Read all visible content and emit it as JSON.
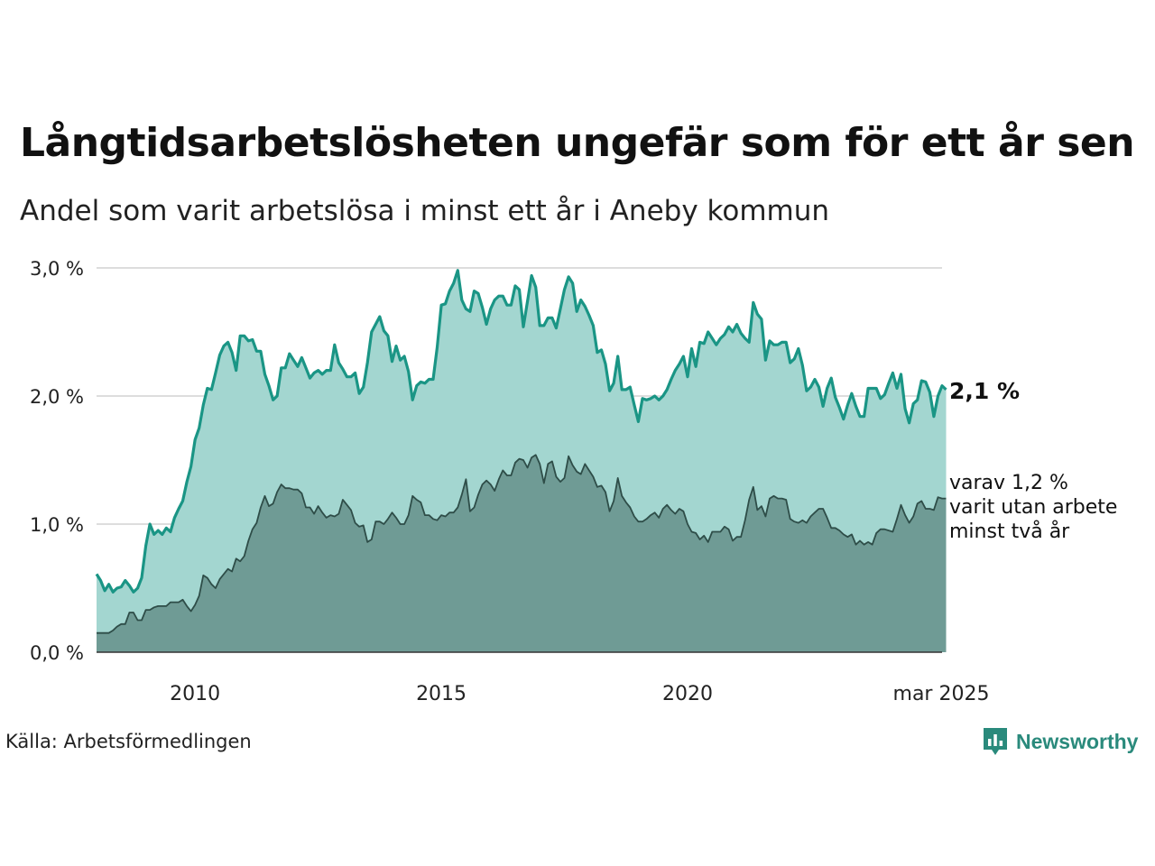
{
  "title": "Långtidsarbetslösheten ungefär som för ett år sen",
  "subtitle": "Andel som varit arbetslösa i minst ett år i Aneby kommun",
  "source": "Källa: Arbetsförmedlingen",
  "brand": {
    "name": "Newsworthy",
    "logo_icon": "newsworthy-logo-icon"
  },
  "colors": {
    "main_line": "#1a9585",
    "main_area": "#a3d6d0",
    "sub_line": "#2e4d48",
    "sub_area": "#6f9b95",
    "grid": "#dddddd"
  },
  "chart_data": {
    "type": "area",
    "x_start": "2008-01",
    "x_end": "2025-03",
    "frequency": "monthly",
    "ylim": [
      0,
      3
    ],
    "y_ticks": [
      "0,0 %",
      "1,0 %",
      "2,0 %",
      "3,0 %"
    ],
    "x_ticks": [
      {
        "date": "2010-01",
        "label": "2010"
      },
      {
        "date": "2015-01",
        "label": "2015"
      },
      {
        "date": "2020-01",
        "label": "2020"
      },
      {
        "date": "2025-03",
        "label": "mar 2025"
      }
    ],
    "grid": true,
    "series": [
      {
        "name": "Andel som varit arbetslösa i minst ett år",
        "end_label": "2,1 %",
        "values": [
          0.61,
          0.56,
          0.48,
          0.53,
          0.47,
          0.5,
          0.51,
          0.56,
          0.52,
          0.47,
          0.5,
          0.58,
          0.83,
          1.0,
          0.92,
          0.95,
          0.92,
          0.97,
          0.94,
          1.05,
          1.12,
          1.18,
          1.33,
          1.45,
          1.66,
          1.75,
          1.93,
          2.06,
          2.05,
          2.18,
          2.32,
          2.39,
          2.42,
          2.34,
          2.2,
          2.47,
          2.47,
          2.43,
          2.44,
          2.35,
          2.35,
          2.17,
          2.08,
          1.97,
          2.0,
          2.22,
          2.22,
          2.33,
          2.28,
          2.23,
          2.3,
          2.22,
          2.14,
          2.18,
          2.2,
          2.17,
          2.2,
          2.2,
          2.4,
          2.26,
          2.21,
          2.15,
          2.15,
          2.18,
          2.02,
          2.07,
          2.26,
          2.5,
          2.56,
          2.62,
          2.51,
          2.47,
          2.27,
          2.39,
          2.28,
          2.31,
          2.19,
          1.97,
          2.08,
          2.11,
          2.1,
          2.13,
          2.13,
          2.38,
          2.71,
          2.72,
          2.82,
          2.88,
          2.98,
          2.75,
          2.68,
          2.66,
          2.82,
          2.8,
          2.69,
          2.56,
          2.68,
          2.75,
          2.78,
          2.78,
          2.71,
          2.71,
          2.86,
          2.83,
          2.54,
          2.74,
          2.94,
          2.85,
          2.55,
          2.55,
          2.61,
          2.61,
          2.53,
          2.68,
          2.83,
          2.93,
          2.88,
          2.66,
          2.75,
          2.7,
          2.63,
          2.55,
          2.34,
          2.36,
          2.25,
          2.04,
          2.1,
          2.31,
          2.05,
          2.05,
          2.07,
          1.93,
          1.8,
          1.98,
          1.97,
          1.98,
          2.0,
          1.97,
          2.0,
          2.05,
          2.13,
          2.2,
          2.25,
          2.31,
          2.15,
          2.37,
          2.23,
          2.42,
          2.41,
          2.5,
          2.45,
          2.4,
          2.45,
          2.48,
          2.54,
          2.5,
          2.56,
          2.49,
          2.45,
          2.42,
          2.73,
          2.64,
          2.6,
          2.28,
          2.43,
          2.4,
          2.4,
          2.42,
          2.42,
          2.26,
          2.29,
          2.37,
          2.24,
          2.04,
          2.07,
          2.13,
          2.07,
          1.92,
          2.06,
          2.14,
          1.99,
          1.91,
          1.82,
          1.93,
          2.02,
          1.92,
          1.84,
          1.84,
          2.06,
          2.06,
          2.06,
          1.98,
          2.01,
          2.1,
          2.18,
          2.06,
          2.17,
          1.9,
          1.79,
          1.94,
          1.97,
          2.12,
          2.11,
          2.03,
          1.84,
          2.0,
          2.08,
          2.05
        ]
      },
      {
        "name": "varit utan arbete minst två år",
        "end_label_lines": [
          "varav 1,2 %",
          "varit utan arbete",
          "minst två år"
        ],
        "values": [
          0.15,
          0.15,
          0.15,
          0.15,
          0.17,
          0.2,
          0.22,
          0.22,
          0.31,
          0.31,
          0.25,
          0.25,
          0.33,
          0.33,
          0.35,
          0.36,
          0.36,
          0.36,
          0.39,
          0.39,
          0.39,
          0.41,
          0.36,
          0.32,
          0.37,
          0.44,
          0.6,
          0.58,
          0.53,
          0.5,
          0.57,
          0.61,
          0.65,
          0.63,
          0.73,
          0.71,
          0.75,
          0.87,
          0.96,
          1.01,
          1.13,
          1.22,
          1.14,
          1.16,
          1.25,
          1.31,
          1.28,
          1.28,
          1.27,
          1.27,
          1.24,
          1.13,
          1.13,
          1.08,
          1.14,
          1.09,
          1.05,
          1.07,
          1.06,
          1.08,
          1.19,
          1.15,
          1.11,
          1.01,
          0.98,
          0.99,
          0.86,
          0.88,
          1.02,
          1.02,
          1.0,
          1.04,
          1.09,
          1.05,
          1.0,
          1.0,
          1.07,
          1.22,
          1.19,
          1.17,
          1.07,
          1.07,
          1.04,
          1.03,
          1.07,
          1.06,
          1.09,
          1.09,
          1.13,
          1.23,
          1.35,
          1.1,
          1.13,
          1.23,
          1.31,
          1.34,
          1.31,
          1.26,
          1.35,
          1.42,
          1.38,
          1.38,
          1.48,
          1.51,
          1.5,
          1.44,
          1.52,
          1.54,
          1.47,
          1.32,
          1.47,
          1.49,
          1.37,
          1.33,
          1.36,
          1.53,
          1.46,
          1.41,
          1.39,
          1.47,
          1.42,
          1.37,
          1.29,
          1.3,
          1.25,
          1.1,
          1.18,
          1.36,
          1.22,
          1.17,
          1.13,
          1.06,
          1.02,
          1.02,
          1.04,
          1.07,
          1.09,
          1.05,
          1.12,
          1.15,
          1.11,
          1.08,
          1.12,
          1.1,
          1.0,
          0.94,
          0.93,
          0.88,
          0.91,
          0.86,
          0.94,
          0.94,
          0.94,
          0.98,
          0.96,
          0.87,
          0.9,
          0.9,
          1.03,
          1.19,
          1.29,
          1.11,
          1.14,
          1.06,
          1.2,
          1.22,
          1.2,
          1.2,
          1.19,
          1.04,
          1.02,
          1.01,
          1.03,
          1.01,
          1.06,
          1.09,
          1.12,
          1.12,
          1.05,
          0.97,
          0.97,
          0.95,
          0.92,
          0.9,
          0.92,
          0.84,
          0.87,
          0.84,
          0.86,
          0.84,
          0.93,
          0.96,
          0.96,
          0.95,
          0.94,
          1.04,
          1.15,
          1.07,
          1.01,
          1.06,
          1.16,
          1.18,
          1.12,
          1.12,
          1.11,
          1.21,
          1.2,
          1.2
        ]
      }
    ]
  }
}
